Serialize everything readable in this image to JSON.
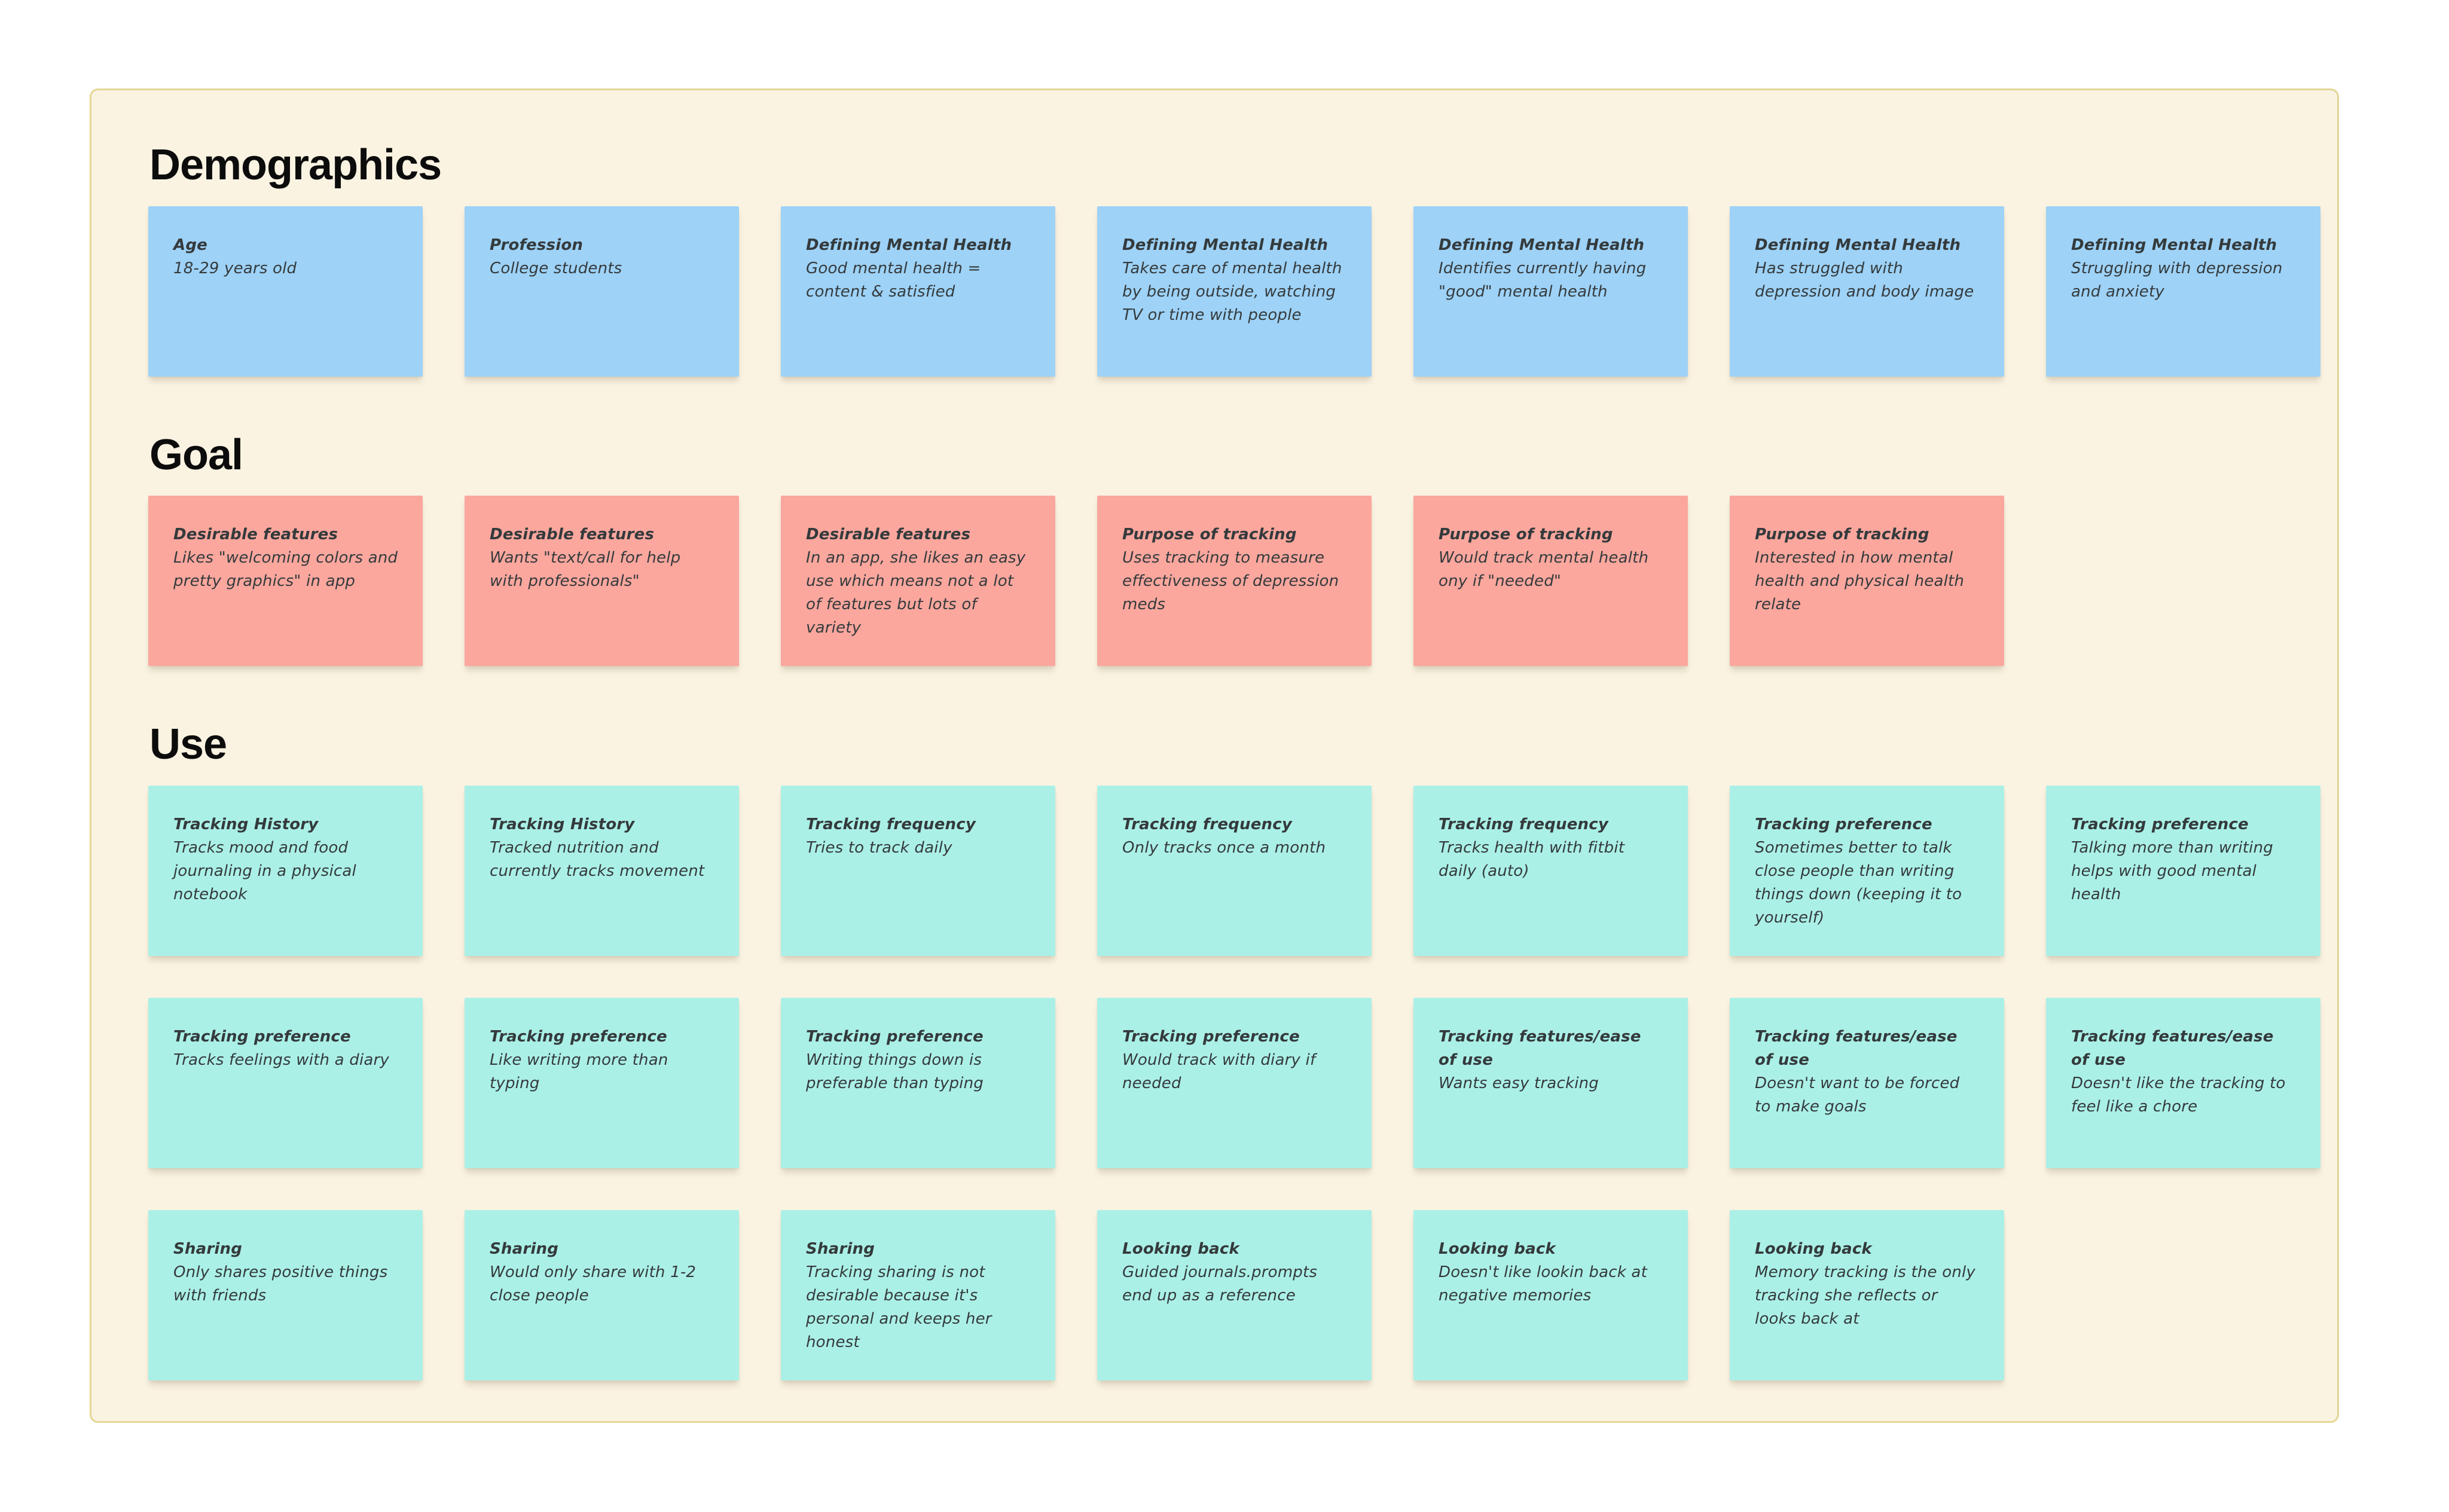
{
  "board": {
    "background_color": "#ffffff",
    "frame_background_color": "#faf3e2",
    "frame_border_color": "#e4d795"
  },
  "sections": [
    {
      "id": "demographics",
      "title": "Demographics",
      "note_color": "#9ed2f7",
      "notes": [
        {
          "title": "Age",
          "body": "18-29 years old"
        },
        {
          "title": "Profession",
          "body": "College students"
        },
        {
          "title": "Defining Mental Health",
          "body": "Good mental health = content & satisfied"
        },
        {
          "title": "Defining Mental Health",
          "body": "Takes care of mental health by being outside, watching TV or time with people"
        },
        {
          "title": "Defining Mental Health",
          "body": "Identifies currently having \"good\" mental health"
        },
        {
          "title": "Defining Mental Health",
          "body": "Has struggled with depression and body image"
        },
        {
          "title": "Defining Mental Health",
          "body": "Struggling with depression and anxiety"
        }
      ]
    },
    {
      "id": "goal",
      "title": "Goal",
      "note_color": "#fba79e",
      "notes": [
        {
          "title": "Desirable features",
          "body": "Likes \"welcoming colors and pretty graphics\" in app"
        },
        {
          "title": "Desirable features",
          "body": "Wants \"text/call for help with professionals\""
        },
        {
          "title": "Desirable features",
          "body": "In an app, she likes an easy use which means not a lot of features but lots of variety"
        },
        {
          "title": "Purpose of tracking",
          "body": "Uses tracking to measure effectiveness of depression meds"
        },
        {
          "title": "Purpose of tracking",
          "body": "Would track mental health ony if \"needed\""
        },
        {
          "title": "Purpose of tracking",
          "body": "Interested in how mental health and physical health relate"
        }
      ]
    },
    {
      "id": "use",
      "title": "Use",
      "note_color": "#abf0e7",
      "notes": [
        {
          "title": "Tracking History",
          "body": "Tracks mood and food journaling in a physical notebook"
        },
        {
          "title": "Tracking History",
          "body": "Tracked nutrition and currently tracks movement"
        },
        {
          "title": "Tracking frequency",
          "body": "Tries to track daily"
        },
        {
          "title": "Tracking frequency",
          "body": "Only tracks once a month"
        },
        {
          "title": "Tracking frequency",
          "body": "Tracks health with fitbit daily (auto)"
        },
        {
          "title": "Tracking preference",
          "body": "Sometimes better to talk close people than writing things down (keeping it to yourself)"
        },
        {
          "title": "Tracking preference",
          "body": "Talking more than writing helps with good mental health"
        },
        {
          "title": "Tracking preference",
          "body": "Tracks feelings with a diary"
        },
        {
          "title": "Tracking preference",
          "body": "Like writing more than typing"
        },
        {
          "title": "Tracking preference",
          "body": "Writing things down is preferable than typing"
        },
        {
          "title": "Tracking preference",
          "body": "Would track with diary if needed"
        },
        {
          "title": "Tracking features/ease of use",
          "body": "Wants easy tracking"
        },
        {
          "title": "Tracking features/ease of use",
          "body": "Doesn't want to be forced to make goals"
        },
        {
          "title": "Tracking features/ease of use",
          "body": "Doesn't like the tracking to feel like a chore"
        },
        {
          "title": "Sharing",
          "body": "Only shares positive things with friends"
        },
        {
          "title": "Sharing",
          "body": "Would only share with 1-2 close people"
        },
        {
          "title": "Sharing",
          "body": "Tracking sharing is not desirable because it's personal and keeps her honest"
        },
        {
          "title": "Looking back",
          "body": "Guided journals.prompts end up as a reference"
        },
        {
          "title": "Looking back",
          "body": "Doesn't like lookin back at negative memories"
        },
        {
          "title": "Looking back",
          "body": "Memory tracking is the only tracking she reflects or looks back at"
        }
      ]
    }
  ]
}
